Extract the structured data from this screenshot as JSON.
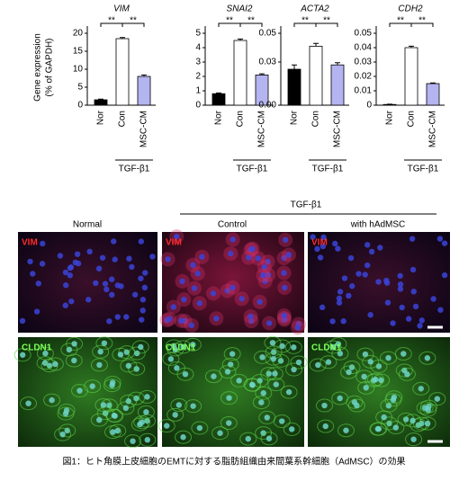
{
  "chart_data": [
    {
      "type": "bar",
      "title": "VIM",
      "ylabel": [
        "Gene expression",
        "(% of GAPDH)"
      ],
      "categories": [
        "Nor",
        "Con",
        "MSC-CM"
      ],
      "values": [
        1.5,
        18.5,
        8
      ],
      "errors": [
        0.2,
        0.3,
        0.4
      ],
      "colors": [
        "#000000",
        "#ffffff",
        "#b4b4f0"
      ],
      "ylim": [
        0,
        20
      ],
      "yticks": [
        0,
        5,
        10,
        15,
        20
      ],
      "annotations": [
        "**",
        "**"
      ],
      "group_label": "TGF-β1"
    },
    {
      "type": "bar",
      "title": "SNAI2",
      "categories": [
        "Nor",
        "Con",
        "MSC-CM"
      ],
      "values": [
        0.8,
        4.5,
        2.1
      ],
      "errors": [
        0.05,
        0.1,
        0.08
      ],
      "colors": [
        "#000000",
        "#ffffff",
        "#b4b4f0"
      ],
      "ylim": [
        0,
        5
      ],
      "yticks": [
        0,
        1,
        2,
        3,
        4,
        5
      ],
      "annotations": [
        "**",
        "**"
      ],
      "group_label": "TGF-β1"
    },
    {
      "type": "bar",
      "title": "ACTA2",
      "categories": [
        "Nor",
        "Con",
        "MSC-CM"
      ],
      "values": [
        0.025,
        0.041,
        0.028
      ],
      "errors": [
        0.003,
        0.002,
        0.0015
      ],
      "colors": [
        "#000000",
        "#ffffff",
        "#b4b4f0"
      ],
      "ylim": [
        0,
        0.05
      ],
      "yticks": [
        {
          "value": 0,
          "label": "0.00"
        },
        0.03,
        0.05
      ],
      "annotations": [
        "**",
        "**"
      ],
      "group_label": "TGF-β1"
    },
    {
      "type": "bar",
      "title": "CDH2",
      "categories": [
        "Nor",
        "Con",
        "MSC-CM"
      ],
      "values": [
        0.0005,
        0.04,
        0.015
      ],
      "errors": [
        0.0002,
        0.001,
        0.0005
      ],
      "colors": [
        "#000000",
        "#ffffff",
        "#b4b4f0"
      ],
      "ylim": [
        0,
        0.05
      ],
      "yticks": [
        0,
        0.01,
        0.02,
        0.03,
        0.04,
        0.05
      ],
      "annotations": [
        "**",
        "**"
      ],
      "group_label": "TGF-β1"
    }
  ],
  "panels": {
    "group_label": "TGF-β1",
    "columns": [
      "Normal",
      "Control",
      "with hAdMSC"
    ],
    "rows": [
      "VIM",
      "CLDN1"
    ]
  },
  "caption": "図1：ヒト角膜上皮細胞のEMTに対する脂肪組織由来間葉系幹細胞（AdMSC）の効果"
}
